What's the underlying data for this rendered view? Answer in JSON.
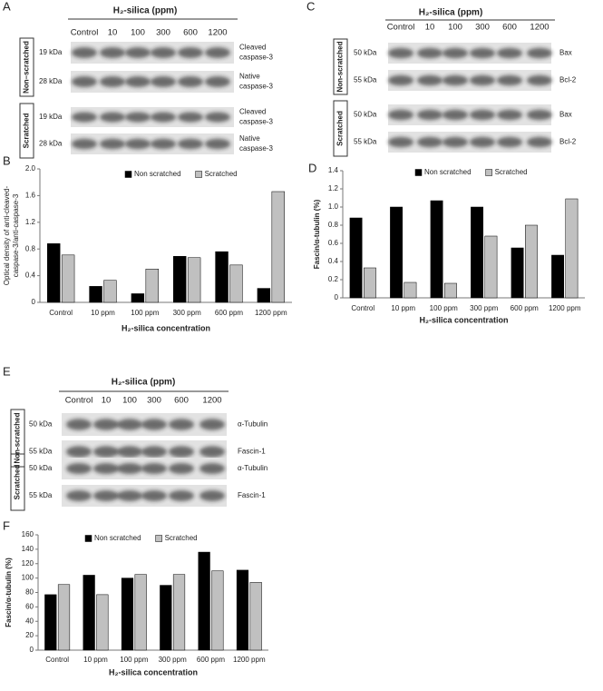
{
  "blots": [
    {
      "panel": "A",
      "header": "H₂-silica (ppm)",
      "lanes": [
        "Control",
        "10",
        "100",
        "300",
        "600",
        "1200"
      ],
      "groups": [
        {
          "name": "Non–scratched",
          "rows": [
            {
              "size": "19 kDa",
              "protein": [
                "Cleaved",
                "caspase-3"
              ]
            },
            {
              "size": "28 kDa",
              "protein": [
                "Native",
                "caspase-3"
              ]
            }
          ]
        },
        {
          "name": "Scratched",
          "rows": [
            {
              "size": "19 kDa",
              "protein": [
                "Cleaved",
                "caspase-3"
              ]
            },
            {
              "size": "28 kDa",
              "protein": [
                "Native",
                "caspase-3"
              ]
            }
          ]
        }
      ]
    },
    {
      "panel": "C",
      "header": "H₂-silica (ppm)",
      "lanes": [
        "Control",
        "10",
        "100",
        "300",
        "600",
        "1200"
      ],
      "groups": [
        {
          "name": "Non-scratched",
          "rows": [
            {
              "size": "50 kDa",
              "protein": [
                "Bax"
              ]
            },
            {
              "size": "55 kDa",
              "protein": [
                "Bcl-2"
              ]
            }
          ]
        },
        {
          "name": "Scratched",
          "rows": [
            {
              "size": "50 kDa",
              "protein": [
                "Bax"
              ]
            },
            {
              "size": "55 kDa",
              "protein": [
                "Bcl-2"
              ]
            }
          ]
        }
      ]
    },
    {
      "panel": "E",
      "header": "H₂-silica (ppm)",
      "lanes": [
        "Control",
        "10",
        "100",
        "300",
        "600",
        "1200"
      ],
      "groups": [
        {
          "name": "Non-scratched",
          "rows": [
            {
              "size": "50 kDa",
              "protein": [
                "α-Tubulin"
              ]
            },
            {
              "size": "55 kDa",
              "protein": [
                "Fascin-1"
              ]
            }
          ]
        },
        {
          "name": "Scratched",
          "rows": [
            {
              "size": "50 kDa",
              "protein": [
                "α-Tubulin"
              ]
            },
            {
              "size": "55 kDa",
              "protein": [
                "Fascin-1"
              ]
            }
          ]
        }
      ]
    }
  ],
  "chart_data": [
    {
      "type": "bar",
      "panel": "B",
      "x_label": "H₂-silica concentration",
      "y_label": [
        "Optical density of anti-cleaved-",
        "caspase-3/anti-caspase-3"
      ],
      "categories": [
        "Control",
        "10 ppm",
        "100 ppm",
        "300 ppm",
        "600 ppm",
        "1200 ppm"
      ],
      "series": [
        {
          "name": "Non scratched",
          "color": "#000000",
          "values": [
            0.88,
            0.24,
            0.13,
            0.69,
            0.76,
            0.21
          ]
        },
        {
          "name": "Scratched",
          "color": "#c0c0c0",
          "values": [
            0.71,
            0.33,
            0.5,
            0.67,
            0.56,
            1.66
          ]
        }
      ],
      "ylim": [
        0,
        2
      ],
      "yticks": [
        0,
        0.4,
        0.8,
        1.2,
        1.6,
        {
          "value": 2,
          "label": "2.0"
        }
      ],
      "legend": "top"
    },
    {
      "type": "bar",
      "panel": "D",
      "x_label": "H₂-silica  concentration",
      "y_label": [
        "Fascin/α-tubulin (%)"
      ],
      "categories": [
        "Control",
        "10 ppm",
        "100 ppm",
        "300 ppm",
        "600 ppm",
        "1200 ppm"
      ],
      "series": [
        {
          "name": "Non scratched",
          "color": "#000000",
          "values": [
            0.88,
            1.0,
            1.07,
            1.0,
            0.55,
            0.47
          ]
        },
        {
          "name": "Scratched",
          "color": "#c0c0c0",
          "values": [
            0.33,
            0.17,
            0.16,
            0.68,
            0.8,
            1.09
          ]
        }
      ],
      "ylim": [
        0,
        1.4
      ],
      "yticks": [
        0,
        0.2,
        0.4,
        0.6,
        0.8,
        {
          "value": 1,
          "label": "1.0"
        },
        1.2,
        1.4
      ],
      "legend": "top"
    },
    {
      "type": "bar",
      "panel": "F",
      "x_label": "H₂-silica concentration",
      "y_label": [
        "Fascin/α-tubulin (%)"
      ],
      "categories": [
        "Control",
        "10 ppm",
        "100 ppm",
        "300 ppm",
        "600 ppm",
        "1200 ppm"
      ],
      "series": [
        {
          "name": "Non scratched",
          "color": "#000000",
          "values": [
            77,
            104,
            100,
            90,
            136,
            111
          ]
        },
        {
          "name": "Scratched",
          "color": "#c0c0c0",
          "values": [
            91,
            77,
            105,
            105,
            110,
            94
          ]
        }
      ],
      "ylim": [
        0,
        160
      ],
      "yticks": [
        0,
        20,
        40,
        60,
        80,
        100,
        120,
        140,
        160
      ],
      "legend": "top"
    }
  ]
}
